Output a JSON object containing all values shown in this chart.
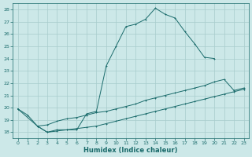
{
  "xlabel": "Humidex (Indice chaleur)",
  "xlim": [
    -0.5,
    23.5
  ],
  "ylim": [
    17.5,
    28.5
  ],
  "yticks": [
    18,
    19,
    20,
    21,
    22,
    23,
    24,
    25,
    26,
    27,
    28
  ],
  "xticks": [
    0,
    1,
    2,
    3,
    4,
    5,
    6,
    7,
    8,
    9,
    10,
    11,
    12,
    13,
    14,
    15,
    16,
    17,
    18,
    19,
    20,
    21,
    22,
    23
  ],
  "bg_color": "#cce8e8",
  "grid_color": "#a8cccc",
  "line_color": "#1a6b6b",
  "line1_x": [
    0,
    1,
    2,
    3,
    4,
    5,
    6,
    7,
    8,
    9,
    10,
    11,
    12,
    13,
    14,
    15,
    16,
    17,
    18,
    19,
    20
  ],
  "line1_y": [
    19.9,
    19.4,
    18.5,
    18.0,
    18.2,
    18.2,
    18.2,
    19.5,
    19.7,
    23.4,
    25.0,
    26.6,
    26.8,
    27.2,
    28.1,
    27.6,
    27.3,
    26.2,
    25.2,
    24.1,
    24.0
  ],
  "line2_x": [
    0,
    2,
    3,
    4,
    5,
    6,
    7,
    8,
    9,
    10,
    11,
    12,
    13,
    14,
    15,
    16,
    17,
    18,
    19,
    20,
    21,
    22,
    23
  ],
  "line2_y": [
    19.9,
    18.5,
    18.6,
    18.9,
    19.1,
    19.2,
    19.4,
    19.6,
    19.7,
    19.9,
    20.1,
    20.3,
    20.6,
    20.8,
    21.0,
    21.2,
    21.4,
    21.6,
    21.8,
    22.1,
    22.3,
    21.4,
    21.6
  ],
  "line3_x": [
    2,
    3,
    4,
    5,
    6,
    7,
    8,
    9,
    10,
    11,
    12,
    13,
    14,
    15,
    16,
    17,
    18,
    19,
    20,
    21,
    22,
    23
  ],
  "line3_y": [
    18.5,
    18.0,
    18.1,
    18.2,
    18.3,
    18.4,
    18.5,
    18.7,
    18.9,
    19.1,
    19.3,
    19.5,
    19.7,
    19.9,
    20.1,
    20.3,
    20.5,
    20.7,
    20.9,
    21.1,
    21.3,
    21.5
  ]
}
